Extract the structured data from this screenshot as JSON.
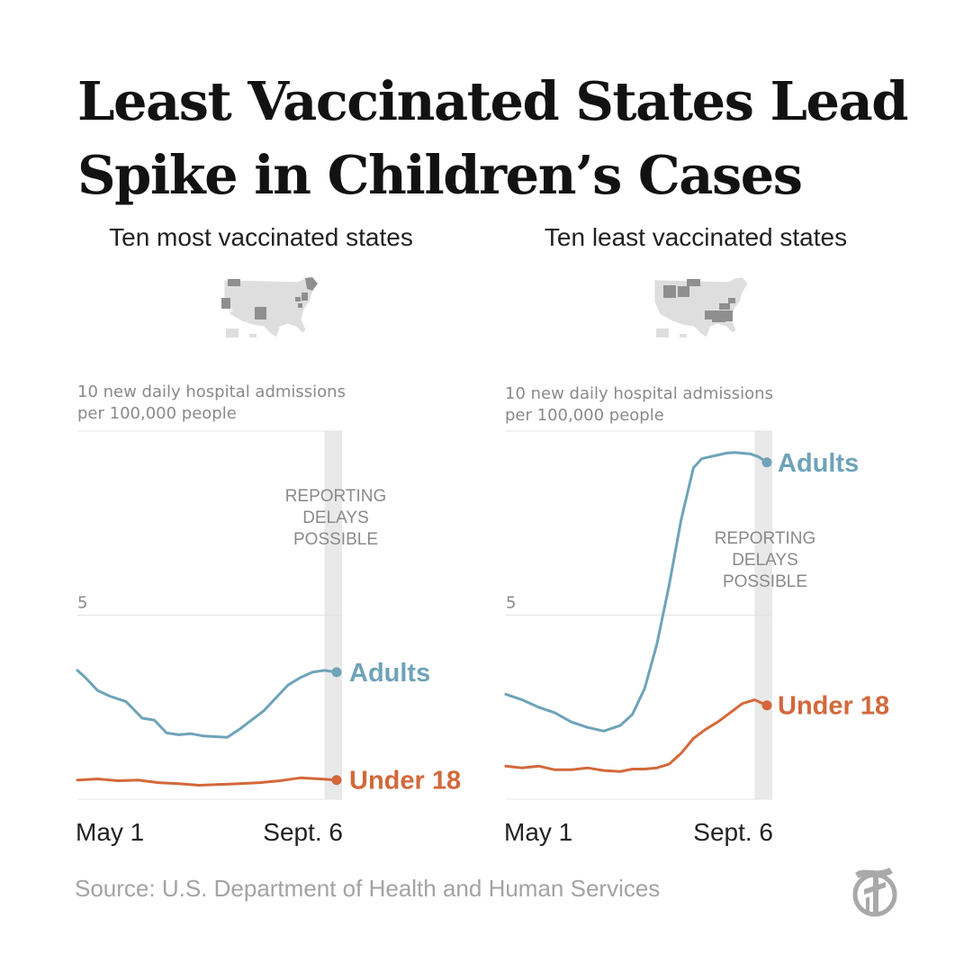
{
  "title": "Least Vaccinated States Lead Spike in Children’s Cases",
  "source": "Source: U.S. Department of Health and Human Services",
  "colors": {
    "adults": "#6ea3b9",
    "under18": "#d3683b",
    "shade": "#e9e9e9",
    "map_land": "#dedede",
    "map_highlight": "#8f8f8f"
  },
  "icons": {
    "map": "us-map-icon",
    "logo": "nyt-logo-icon"
  },
  "chart_data": [
    {
      "type": "line",
      "title": "Ten most vaccinated states",
      "ylabel": "10 new daily hospital admissions per 100,000 people",
      "ylim": [
        0,
        10
      ],
      "y_ticks": [
        5,
        10
      ],
      "x_ticks": [
        "May 1",
        "Sept. 6"
      ],
      "xlim": [
        0,
        128
      ],
      "shaded_from": 122,
      "shade_label": "REPORTING DELAYS POSSIBLE",
      "series": [
        {
          "name": "Adults",
          "x": [
            0,
            4,
            10,
            16,
            24,
            32,
            38,
            44,
            50,
            56,
            62,
            68,
            74,
            80,
            86,
            92,
            98,
            104,
            110,
            116,
            122,
            128
          ],
          "values": [
            3.5,
            3.3,
            2.95,
            2.8,
            2.65,
            2.2,
            2.15,
            1.8,
            1.75,
            1.78,
            1.72,
            1.7,
            1.68,
            1.9,
            2.15,
            2.4,
            2.75,
            3.1,
            3.3,
            3.45,
            3.5,
            3.45
          ]
        },
        {
          "name": "Under 18",
          "x": [
            0,
            10,
            20,
            30,
            40,
            50,
            60,
            70,
            80,
            90,
            100,
            110,
            120,
            128
          ],
          "values": [
            0.52,
            0.55,
            0.5,
            0.52,
            0.45,
            0.42,
            0.38,
            0.4,
            0.42,
            0.45,
            0.5,
            0.58,
            0.55,
            0.52
          ]
        }
      ]
    },
    {
      "type": "line",
      "title": "Ten least vaccinated states",
      "ylabel": "10 new daily hospital admissions per 100,000 people",
      "ylim": [
        0,
        10
      ],
      "y_ticks": [
        5,
        10
      ],
      "x_ticks": [
        "May 1",
        "Sept. 6"
      ],
      "xlim": [
        0,
        128
      ],
      "shaded_from": 122,
      "shade_label": "REPORTING DELAYS POSSIBLE",
      "series": [
        {
          "name": "Adults",
          "x": [
            0,
            8,
            16,
            24,
            32,
            40,
            48,
            56,
            62,
            68,
            74,
            80,
            86,
            92,
            96,
            100,
            104,
            108,
            112,
            116,
            120,
            124,
            128
          ],
          "values": [
            2.85,
            2.7,
            2.5,
            2.35,
            2.1,
            1.95,
            1.85,
            2.0,
            2.3,
            3.0,
            4.2,
            5.8,
            7.6,
            9.0,
            9.25,
            9.3,
            9.35,
            9.4,
            9.42,
            9.4,
            9.38,
            9.3,
            9.15
          ]
        },
        {
          "name": "Under 18",
          "x": [
            0,
            8,
            16,
            24,
            32,
            40,
            48,
            56,
            62,
            68,
            74,
            80,
            86,
            92,
            98,
            104,
            110,
            116,
            122,
            128
          ],
          "values": [
            0.9,
            0.85,
            0.9,
            0.8,
            0.8,
            0.85,
            0.78,
            0.75,
            0.82,
            0.82,
            0.85,
            0.95,
            1.25,
            1.65,
            1.9,
            2.1,
            2.35,
            2.6,
            2.7,
            2.55
          ]
        }
      ]
    }
  ]
}
